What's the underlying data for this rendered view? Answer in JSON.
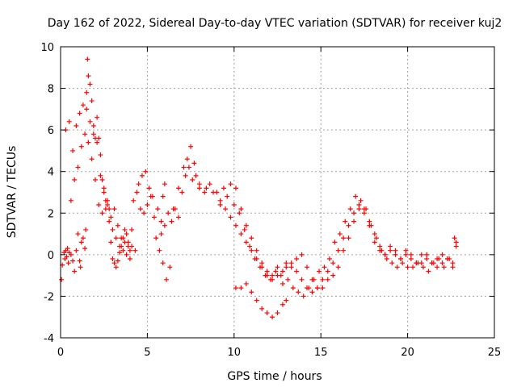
{
  "chart_data": {
    "type": "scatter",
    "title": "Day 162 of 2022, Sidereal Day-to-day VTEC variation (SDTVAR) for receiver kuj2",
    "xlabel": "GPS time / hours",
    "ylabel": "SDTVAR / TECUs",
    "xlim": [
      0,
      25
    ],
    "ylim": [
      -4,
      10
    ],
    "xticks": [
      0,
      5,
      10,
      15,
      20,
      25
    ],
    "yticks": [
      -4,
      -2,
      0,
      2,
      4,
      6,
      8,
      10
    ],
    "grid": true,
    "marker": "plus",
    "series": [
      {
        "name": "SDTVAR",
        "color": "#ff0000",
        "x": [
          0.05,
          0.1,
          0.2,
          0.25,
          0.3,
          0.35,
          0.4,
          0.45,
          0.5,
          0.6,
          0.7,
          0.8,
          0.9,
          1.0,
          1.1,
          1.15,
          1.2,
          1.3,
          1.4,
          1.45,
          1.5,
          1.55,
          1.6,
          1.7,
          1.8,
          1.9,
          2.0,
          2.1,
          2.2,
          2.3,
          2.4,
          2.5,
          2.6,
          2.7,
          2.8,
          2.9,
          3.0,
          3.1,
          3.2,
          3.3,
          3.4,
          3.5,
          3.6,
          3.7,
          3.8,
          3.9,
          4.0,
          4.1,
          4.2,
          4.4,
          4.6,
          4.8,
          5.0,
          5.2,
          5.4,
          5.6,
          5.8,
          5.9,
          6.0,
          6.2,
          6.4,
          6.6,
          6.8,
          7.0,
          7.2,
          7.4,
          7.6,
          7.8,
          8.0,
          8.3,
          8.6,
          9.0,
          9.4,
          9.8,
          10.1,
          10.4,
          10.7,
          11.0,
          11.3,
          11.6,
          11.9,
          12.2,
          12.5,
          12.8,
          13.0,
          13.3,
          13.6,
          13.9,
          14.2,
          14.5,
          14.8,
          15.1,
          15.4,
          15.7,
          16.0,
          16.3,
          16.6,
          16.9,
          17.2,
          17.5,
          17.8,
          18.1,
          18.4,
          18.7,
          19.0,
          19.3,
          19.6,
          19.9,
          20.2,
          20.5,
          20.8,
          21.1,
          21.4,
          21.7,
          22.0,
          22.3,
          22.6,
          22.8,
          0.3,
          0.5,
          0.7,
          0.9,
          1.1,
          1.3,
          1.5,
          1.7,
          1.9,
          2.1,
          2.3,
          2.5,
          2.7,
          2.9,
          3.1,
          3.3,
          3.5,
          3.7,
          3.9,
          4.1,
          4.3,
          0.6,
          0.8,
          1.0,
          1.2,
          1.4,
          1.6,
          1.8,
          2.0,
          2.2,
          2.4,
          2.6,
          2.8,
          3.0,
          3.2,
          3.4,
          3.6,
          3.8,
          4.0,
          8.0,
          8.4,
          8.8,
          9.2,
          9.6,
          10.0,
          10.3,
          10.6,
          10.9,
          11.2,
          11.5,
          11.8,
          12.1,
          12.4,
          12.7,
          13.0,
          13.3,
          13.6,
          13.9,
          14.2,
          14.5,
          14.8,
          15.1,
          15.4,
          15.7,
          16.0,
          16.3,
          16.6,
          16.9,
          17.2,
          17.5,
          17.8,
          18.1,
          18.4,
          18.7,
          19.0,
          19.3,
          19.6,
          19.9,
          20.2,
          20.5,
          20.8,
          21.1,
          21.4,
          21.7,
          22.0,
          22.3,
          22.6,
          22.8,
          9.2,
          9.5,
          9.8,
          10.1,
          10.4,
          10.7,
          11.0,
          11.3,
          11.6,
          11.9,
          12.2,
          12.5,
          12.8,
          13.1,
          13.4,
          13.7,
          14.0,
          14.3,
          14.6,
          14.9,
          15.2,
          15.5,
          15.8,
          16.1,
          16.4,
          16.7,
          17.0,
          17.3,
          17.6,
          17.9,
          18.2,
          18.5,
          18.8,
          19.1,
          19.4,
          19.7,
          20.0,
          20.3,
          20.6,
          20.9,
          21.2,
          21.5,
          21.8,
          22.1,
          22.4,
          22.7,
          10.1,
          10.4,
          10.7,
          11.0,
          11.3,
          11.6,
          11.9,
          12.2,
          12.5,
          12.8,
          13.0,
          5.5,
          5.7,
          5.9,
          6.1,
          6.3,
          6.0,
          5.8,
          6.5,
          6.8,
          7.1,
          7.3,
          7.5,
          7.7,
          4.5,
          4.7,
          4.9,
          5.1,
          5.3
        ],
        "y": [
          -1.2,
          -0.5,
          0.1,
          -0.2,
          0.2,
          -0.1,
          0.3,
          -0.4,
          0.1,
          0.0,
          -0.3,
          -0.8,
          0.2,
          1.0,
          -0.3,
          -0.6,
          0.6,
          0.8,
          0.3,
          1.2,
          7.0,
          9.4,
          8.6,
          8.2,
          7.4,
          6.2,
          5.6,
          6.6,
          5.6,
          4.8,
          3.6,
          3.2,
          2.6,
          2.4,
          2.2,
          0.6,
          -0.2,
          -0.4,
          -0.6,
          -0.3,
          0.1,
          0.4,
          0.8,
          0.6,
          1.0,
          0.4,
          0.2,
          1.2,
          2.6,
          3.0,
          2.2,
          2.0,
          2.4,
          2.8,
          1.8,
          2.2,
          1.6,
          2.8,
          3.4,
          2.0,
          1.6,
          2.2,
          1.8,
          3.0,
          3.8,
          4.2,
          3.6,
          3.8,
          3.2,
          3.0,
          3.4,
          3.0,
          3.2,
          3.4,
          3.2,
          2.2,
          1.4,
          0.8,
          0.2,
          -0.4,
          -0.8,
          -1.0,
          -0.6,
          -0.8,
          -0.4,
          -0.6,
          -0.2,
          0.0,
          -0.6,
          -1.2,
          -1.6,
          -1.6,
          -1.2,
          -1.0,
          -0.6,
          0.2,
          0.8,
          1.6,
          2.2,
          2.0,
          1.4,
          0.6,
          0.2,
          0.0,
          0.2,
          0.0,
          -0.2,
          0.2,
          0.0,
          -0.4,
          0.0,
          -0.2,
          -0.4,
          -0.2,
          0.0,
          -0.2,
          -0.6,
          0.6,
          6.0,
          6.4,
          5.0,
          6.2,
          6.8,
          7.2,
          7.8,
          6.4,
          5.8,
          5.4,
          3.8,
          3.0,
          2.6,
          1.8,
          2.2,
          1.4,
          0.8,
          1.2,
          0.6,
          0.4,
          0.2,
          2.6,
          3.6,
          4.2,
          5.2,
          5.8,
          5.4,
          4.6,
          3.6,
          2.4,
          2.0,
          2.2,
          1.6,
          1.2,
          0.8,
          0.4,
          0.2,
          0.0,
          -0.2,
          3.4,
          3.2,
          3.0,
          2.6,
          2.8,
          2.4,
          2.0,
          1.2,
          0.4,
          -0.2,
          -0.6,
          -1.0,
          -1.2,
          -0.8,
          -1.0,
          -0.6,
          -0.4,
          -0.8,
          -1.2,
          -1.6,
          -1.8,
          -1.6,
          -1.2,
          -0.8,
          -0.4,
          0.2,
          0.8,
          1.4,
          2.0,
          2.4,
          2.2,
          1.6,
          1.0,
          0.4,
          0.0,
          0.4,
          0.2,
          -0.2,
          0.0,
          -0.2,
          -0.4,
          -0.4,
          0.0,
          -0.4,
          -0.6,
          -0.4,
          -0.2,
          -0.4,
          0.4,
          2.4,
          2.2,
          1.8,
          1.4,
          1.0,
          0.6,
          0.2,
          -0.2,
          -0.6,
          -1.0,
          -1.2,
          -1.0,
          -1.4,
          -1.2,
          -1.6,
          -1.8,
          -2.0,
          -1.6,
          -1.2,
          -0.8,
          -0.6,
          -0.2,
          0.6,
          1.0,
          1.6,
          2.2,
          2.8,
          2.6,
          2.2,
          1.4,
          0.8,
          0.2,
          -0.2,
          -0.4,
          -0.6,
          -0.4,
          -0.6,
          -0.6,
          -0.4,
          -0.6,
          -0.8,
          -0.4,
          -0.2,
          -0.6,
          -0.2,
          0.8,
          -1.6,
          -1.6,
          -1.4,
          -1.8,
          -2.2,
          -2.6,
          -2.8,
          -3.0,
          -2.8,
          -2.4,
          -2.2,
          0.8,
          0.2,
          -0.4,
          -1.2,
          -0.6,
          1.4,
          1.0,
          2.2,
          3.2,
          4.2,
          4.6,
          5.2,
          4.4,
          3.4,
          3.8,
          4.0,
          3.2,
          2.8
        ]
      }
    ]
  }
}
